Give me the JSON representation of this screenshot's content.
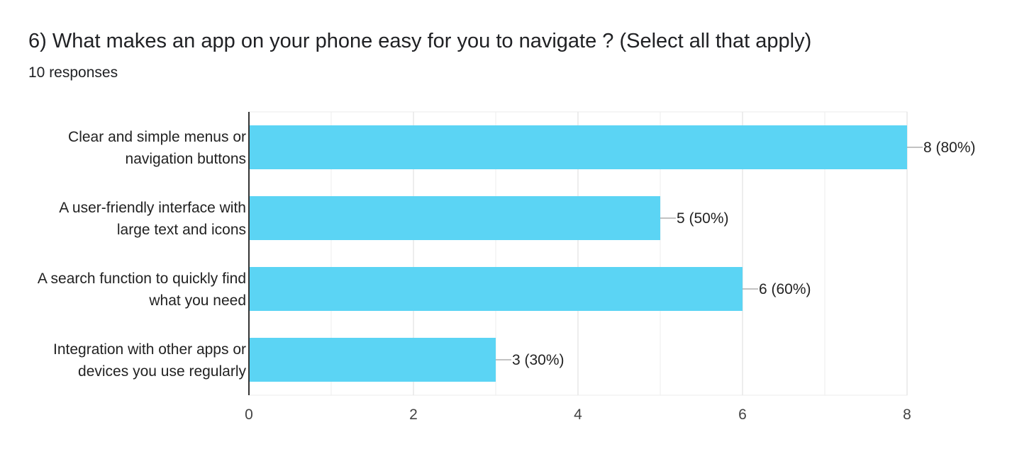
{
  "header": {
    "title": "6) What makes an app on your phone easy for you to navigate ?  (Select all that apply)",
    "responses": "10 responses"
  },
  "colors": {
    "bar": "#5bd4f4",
    "grid": "#ebebeb",
    "axis": "#333333",
    "leader": "#9e9e9e"
  },
  "chart_data": {
    "type": "bar",
    "orientation": "horizontal",
    "title": "6) What makes an app on your phone easy for you to navigate ?  (Select all that apply)",
    "subtitle": "10 responses",
    "categories": [
      [
        "Clear and simple menus or",
        "navigation buttons"
      ],
      [
        "A user-friendly interface with",
        "large text and icons"
      ],
      [
        "A search function to quickly find",
        "what you need"
      ],
      [
        "Integration with other apps or",
        "devices you use regularly"
      ]
    ],
    "values": [
      8,
      5,
      6,
      3
    ],
    "data_labels": [
      "8 (80%)",
      "5 (50%)",
      "6 (60%)",
      "3 (30%)"
    ],
    "xlim": [
      0,
      8
    ],
    "xticks": [
      0,
      2,
      4,
      6,
      8
    ],
    "xlabel": "",
    "ylabel": "",
    "grid": true,
    "legend": "none"
  }
}
